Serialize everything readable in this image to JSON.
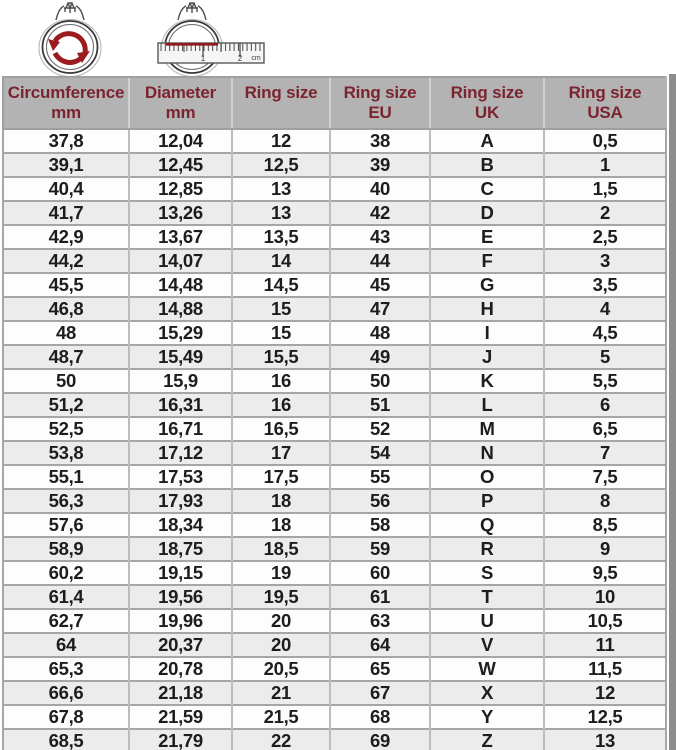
{
  "colors": {
    "header_bg": "#b3b3b3",
    "header_text": "#7b2430",
    "row_bg": "#fdfdfd",
    "row_alt_bg": "#ececec",
    "border": "#a6a6a6",
    "cell_text": "#1d1d1d",
    "accent_red": "#9b1b1e",
    "right_strip": "#8d8d8d"
  },
  "icons": {
    "circumference_icon": "ring-with-circular-arrows",
    "diameter_icon": "ring-with-ruler",
    "ruler_label_1": "1",
    "ruler_label_2": "2",
    "ruler_unit": "cm"
  },
  "table": {
    "headers": [
      {
        "line1": "Circumference",
        "line2": "mm"
      },
      {
        "line1": "Diameter",
        "line2": "mm"
      },
      {
        "line1": "Ring size",
        "line2": ""
      },
      {
        "line1": "Ring size",
        "line2": "EU"
      },
      {
        "line1": "Ring size",
        "line2": "UK"
      },
      {
        "line1": "Ring size",
        "line2": "USA"
      }
    ],
    "rows": [
      [
        "37,8",
        "12,04",
        "12",
        "38",
        "A",
        "0,5"
      ],
      [
        "39,1",
        "12,45",
        "12,5",
        "39",
        "B",
        "1"
      ],
      [
        "40,4",
        "12,85",
        "13",
        "40",
        "C",
        "1,5"
      ],
      [
        "41,7",
        "13,26",
        "13",
        "42",
        "D",
        "2"
      ],
      [
        "42,9",
        "13,67",
        "13,5",
        "43",
        "E",
        "2,5"
      ],
      [
        "44,2",
        "14,07",
        "14",
        "44",
        "F",
        "3"
      ],
      [
        "45,5",
        "14,48",
        "14,5",
        "45",
        "G",
        "3,5"
      ],
      [
        "46,8",
        "14,88",
        "15",
        "47",
        "H",
        "4"
      ],
      [
        "48",
        "15,29",
        "15",
        "48",
        "I",
        "4,5"
      ],
      [
        "48,7",
        "15,49",
        "15,5",
        "49",
        "J",
        "5"
      ],
      [
        "50",
        "15,9",
        "16",
        "50",
        "K",
        "5,5"
      ],
      [
        "51,2",
        "16,31",
        "16",
        "51",
        "L",
        "6"
      ],
      [
        "52,5",
        "16,71",
        "16,5",
        "52",
        "M",
        "6,5"
      ],
      [
        "53,8",
        "17,12",
        "17",
        "54",
        "N",
        "7"
      ],
      [
        "55,1",
        "17,53",
        "17,5",
        "55",
        "O",
        "7,5"
      ],
      [
        "56,3",
        "17,93",
        "18",
        "56",
        "P",
        "8"
      ],
      [
        "57,6",
        "18,34",
        "18",
        "58",
        "Q",
        "8,5"
      ],
      [
        "58,9",
        "18,75",
        "18,5",
        "59",
        "R",
        "9"
      ],
      [
        "60,2",
        "19,15",
        "19",
        "60",
        "S",
        "9,5"
      ],
      [
        "61,4",
        "19,56",
        "19,5",
        "61",
        "T",
        "10"
      ],
      [
        "62,7",
        "19,96",
        "20",
        "63",
        "U",
        "10,5"
      ],
      [
        "64",
        "20,37",
        "20",
        "64",
        "V",
        "11"
      ],
      [
        "65,3",
        "20,78",
        "20,5",
        "65",
        "W",
        "11,5"
      ],
      [
        "66,6",
        "21,18",
        "21",
        "67",
        "X",
        "12"
      ],
      [
        "67,8",
        "21,59",
        "21,5",
        "68",
        "Y",
        "12,5"
      ],
      [
        "68,5",
        "21,79",
        "22",
        "69",
        "Z",
        "13"
      ]
    ]
  },
  "chart_data": {
    "type": "table",
    "columns": [
      "Circumference mm",
      "Diameter mm",
      "Ring size",
      "Ring size EU",
      "Ring size UK",
      "Ring size USA"
    ],
    "rows": [
      [
        "37,8",
        "12,04",
        "12",
        "38",
        "A",
        "0,5"
      ],
      [
        "39,1",
        "12,45",
        "12,5",
        "39",
        "B",
        "1"
      ],
      [
        "40,4",
        "12,85",
        "13",
        "40",
        "C",
        "1,5"
      ],
      [
        "41,7",
        "13,26",
        "13",
        "42",
        "D",
        "2"
      ],
      [
        "42,9",
        "13,67",
        "13,5",
        "43",
        "E",
        "2,5"
      ],
      [
        "44,2",
        "14,07",
        "14",
        "44",
        "F",
        "3"
      ],
      [
        "45,5",
        "14,48",
        "14,5",
        "45",
        "G",
        "3,5"
      ],
      [
        "46,8",
        "14,88",
        "15",
        "47",
        "H",
        "4"
      ],
      [
        "48",
        "15,29",
        "15",
        "48",
        "I",
        "4,5"
      ],
      [
        "48,7",
        "15,49",
        "15,5",
        "49",
        "J",
        "5"
      ],
      [
        "50",
        "15,9",
        "16",
        "50",
        "K",
        "5,5"
      ],
      [
        "51,2",
        "16,31",
        "16",
        "51",
        "L",
        "6"
      ],
      [
        "52,5",
        "16,71",
        "16,5",
        "52",
        "M",
        "6,5"
      ],
      [
        "53,8",
        "17,12",
        "17",
        "54",
        "N",
        "7"
      ],
      [
        "55,1",
        "17,53",
        "17,5",
        "55",
        "O",
        "7,5"
      ],
      [
        "56,3",
        "17,93",
        "18",
        "56",
        "P",
        "8"
      ],
      [
        "57,6",
        "18,34",
        "18",
        "58",
        "Q",
        "8,5"
      ],
      [
        "58,9",
        "18,75",
        "18,5",
        "59",
        "R",
        "9"
      ],
      [
        "60,2",
        "19,15",
        "19",
        "60",
        "S",
        "9,5"
      ],
      [
        "61,4",
        "19,56",
        "19,5",
        "61",
        "T",
        "10"
      ],
      [
        "62,7",
        "19,96",
        "20",
        "63",
        "U",
        "10,5"
      ],
      [
        "64",
        "20,37",
        "20",
        "64",
        "V",
        "11"
      ],
      [
        "65,3",
        "20,78",
        "20,5",
        "65",
        "W",
        "11,5"
      ],
      [
        "66,6",
        "21,18",
        "21",
        "67",
        "X",
        "12"
      ],
      [
        "67,8",
        "21,59",
        "21,5",
        "68",
        "Y",
        "12,5"
      ],
      [
        "68,5",
        "21,79",
        "22",
        "69",
        "Z",
        "13"
      ]
    ]
  }
}
